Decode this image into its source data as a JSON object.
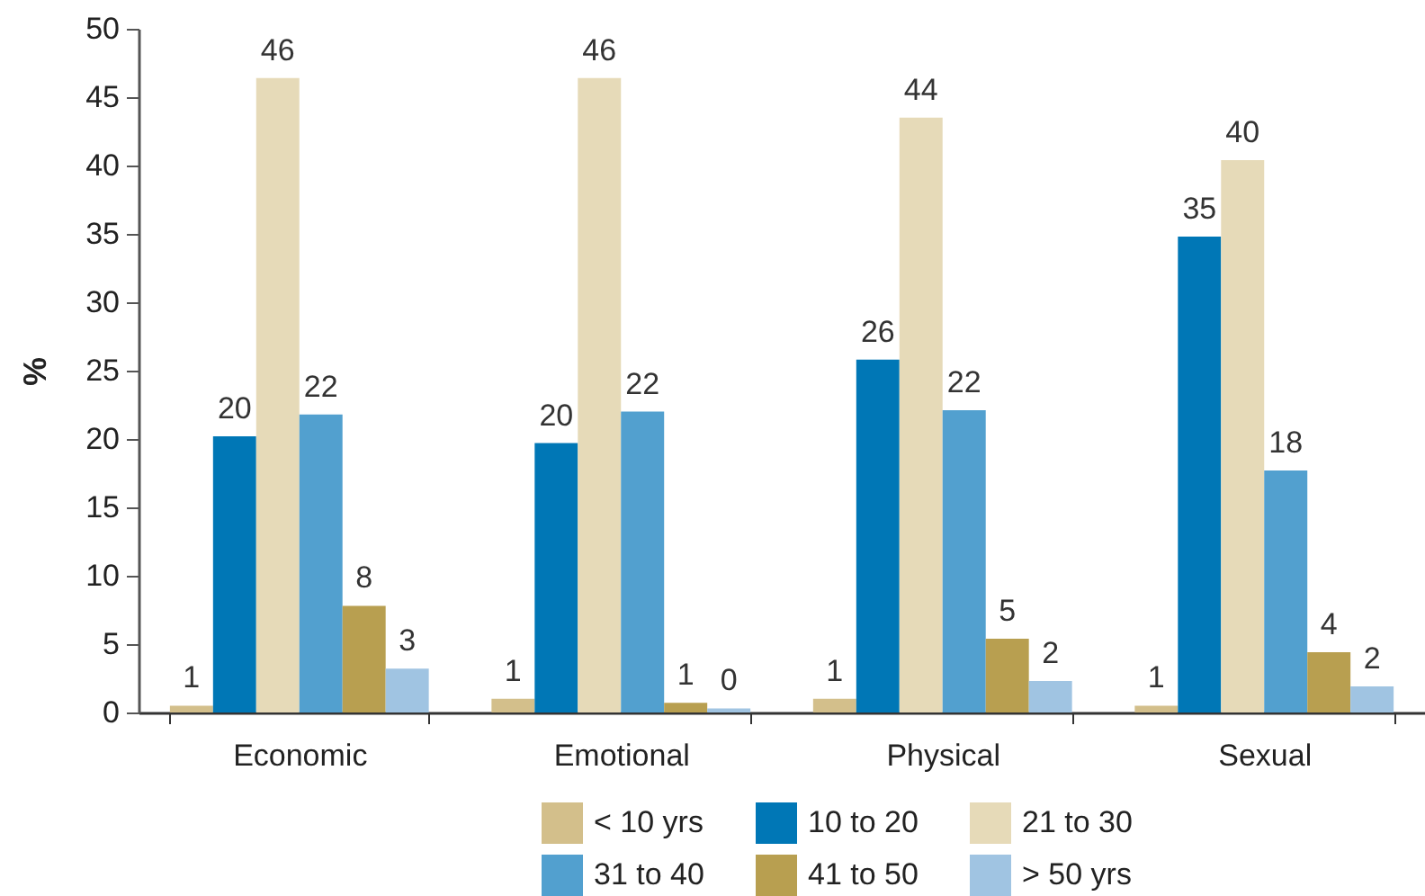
{
  "chart_data": {
    "type": "bar",
    "ylabel": "%",
    "categories": [
      "Economic",
      "Emotional",
      "Physical",
      "Sexual"
    ],
    "series": [
      {
        "name": "< 10 yrs",
        "color": "#d3bf8b",
        "values": [
          0.5,
          1.0,
          1.0,
          0.5
        ],
        "value_labels": [
          "1",
          "1",
          "1",
          "1"
        ]
      },
      {
        "name": "10 to 20",
        "color": "#0077b6",
        "values": [
          20.2,
          19.7,
          25.8,
          34.8
        ],
        "value_labels": [
          "20",
          "20",
          "26",
          "35"
        ]
      },
      {
        "name": "21 to 30",
        "color": "#e6dab8",
        "values": [
          46.4,
          46.4,
          43.5,
          40.4
        ],
        "value_labels": [
          "46",
          "46",
          "44",
          "40"
        ]
      },
      {
        "name": "31 to 40",
        "color": "#52a0cf",
        "values": [
          21.8,
          22.0,
          22.1,
          17.7
        ],
        "value_labels": [
          "22",
          "22",
          "22",
          "18"
        ]
      },
      {
        "name": "41 to 50",
        "color": "#b89f50",
        "values": [
          7.8,
          0.7,
          5.4,
          4.4
        ],
        "value_labels": [
          "8",
          "1",
          "5",
          "4"
        ]
      },
      {
        "name": "> 50 yrs",
        "color": "#a0c4e2",
        "values": [
          3.2,
          0.3,
          2.3,
          1.9
        ],
        "value_labels": [
          "3",
          "0",
          "2",
          "2"
        ]
      }
    ],
    "ylim": [
      0,
      50
    ],
    "yticks": [
      0,
      5,
      10,
      15,
      20,
      25,
      30,
      35,
      40,
      45,
      50
    ],
    "grid": false,
    "legend": "bottom"
  }
}
